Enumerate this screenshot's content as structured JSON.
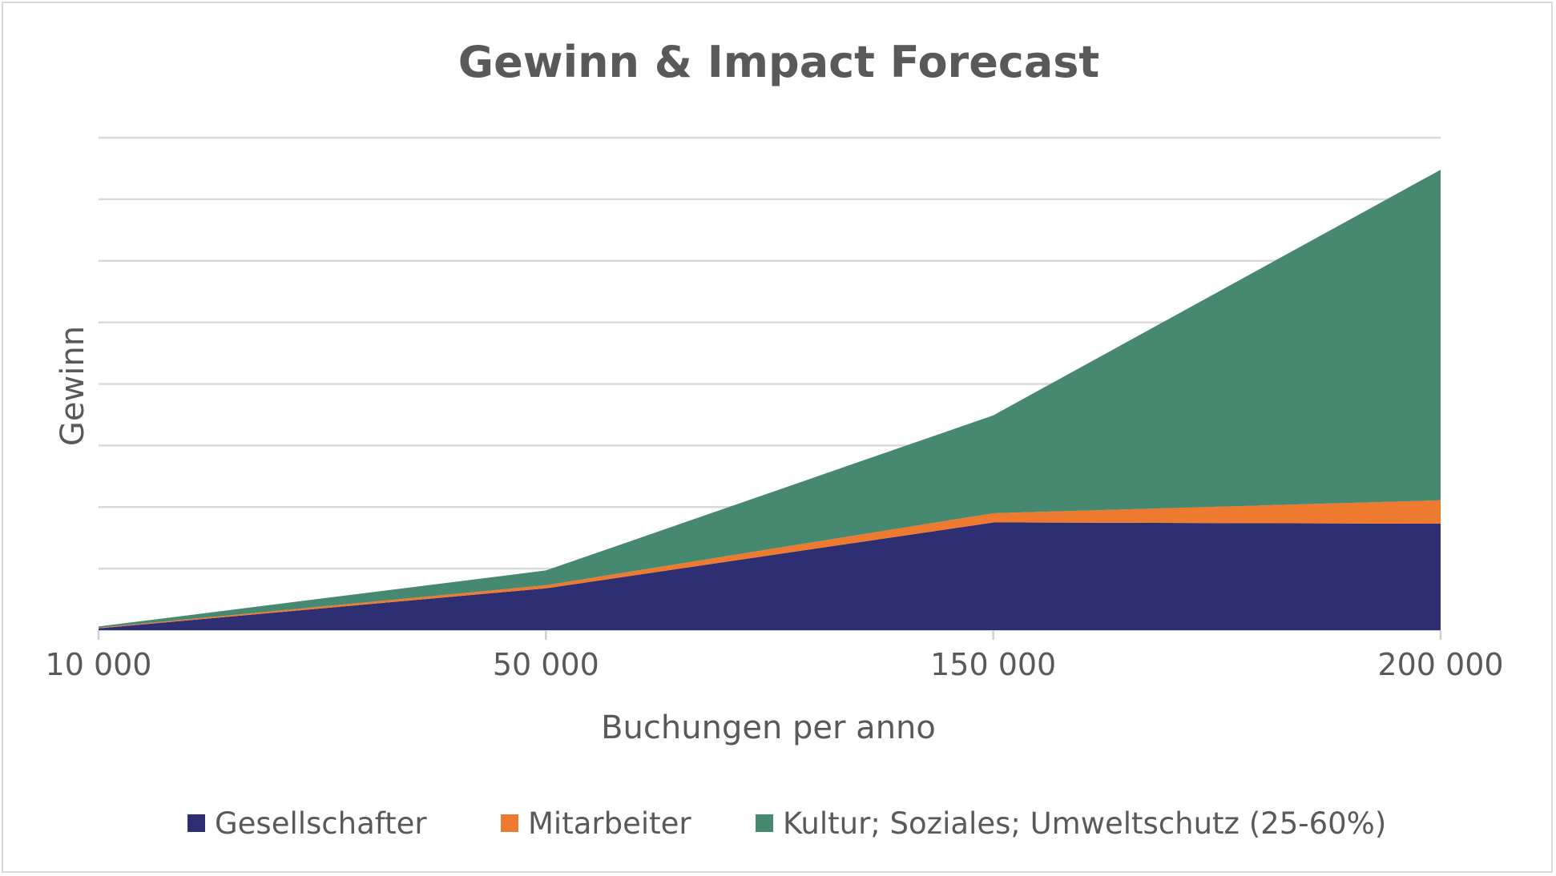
{
  "chart_data": {
    "type": "area",
    "stacked": true,
    "title": "Gewinn & Impact Forecast",
    "xlabel": "Buchungen per anno",
    "ylabel": "Gewinn",
    "categories": [
      "10 000",
      "50 000",
      "150 000",
      "200 000"
    ],
    "ylim": [
      0,
      8
    ],
    "y_tick_labels_shown": false,
    "grid": true,
    "legend_position": "bottom",
    "series": [
      {
        "name": "Gesellschafter",
        "color": "#2e2e72",
        "values": [
          0.03,
          0.68,
          1.75,
          1.73
        ]
      },
      {
        "name": "Mitarbeiter",
        "color": "#ee7a30",
        "values": [
          0.01,
          0.05,
          0.15,
          0.38
        ]
      },
      {
        "name": "Kultur; Soziales; Umweltschutz (25-60%)",
        "color": "#478870",
        "values": [
          0.02,
          0.24,
          1.59,
          5.37
        ]
      }
    ]
  }
}
